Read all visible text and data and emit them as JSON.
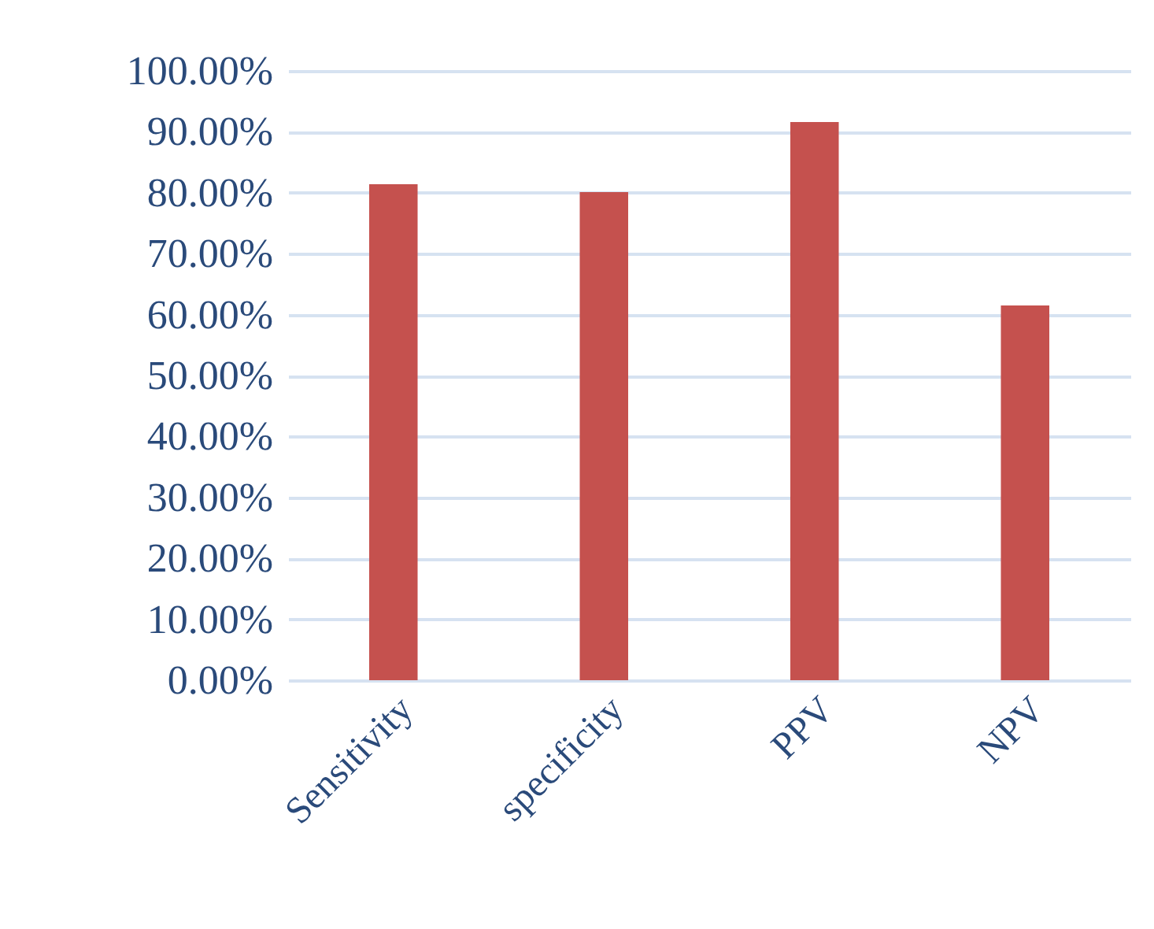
{
  "chart_data": {
    "type": "bar",
    "categories": [
      "Sensitivity",
      "specificity",
      "PPV",
      "NPV"
    ],
    "values": [
      81.4,
      80.1,
      91.6,
      61.5
    ],
    "color": "#c5514e",
    "ylim": [
      0,
      100
    ],
    "yticks": [
      {
        "value": 0,
        "label": "0.00%"
      },
      {
        "value": 10,
        "label": "10.00%"
      },
      {
        "value": 20,
        "label": "20.00%"
      },
      {
        "value": 30,
        "label": "30.00%"
      },
      {
        "value": 40,
        "label": "40.00%"
      },
      {
        "value": 50,
        "label": "50.00%"
      },
      {
        "value": 60,
        "label": "60.00%"
      },
      {
        "value": 70,
        "label": "70.00%"
      },
      {
        "value": 80,
        "label": "80.00%"
      },
      {
        "value": 90,
        "label": "90.00%"
      },
      {
        "value": 100,
        "label": "100.00%"
      }
    ],
    "grid": "y"
  }
}
